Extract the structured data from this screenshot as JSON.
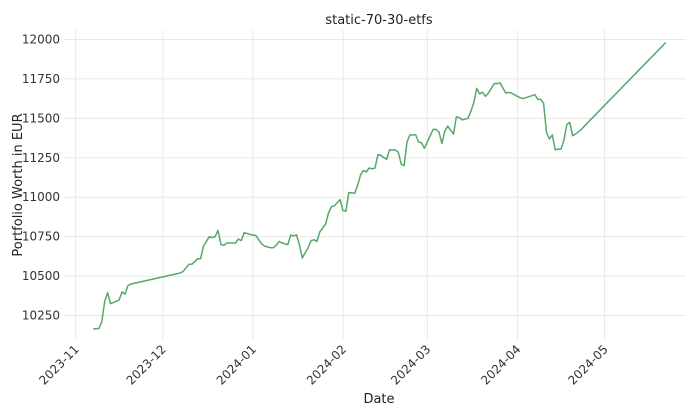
{
  "chart_data": {
    "type": "line",
    "title": "static-70-30-etfs",
    "xlabel": "Date",
    "ylabel": "Portfolio Worth in EUR",
    "x_ticks": [
      "2023-11",
      "2023-12",
      "2024-01",
      "2024-02",
      "2024-03",
      "2024-04",
      "2024-05"
    ],
    "y_ticks": [
      10250,
      10500,
      10750,
      11000,
      11250,
      11500,
      11750,
      12000
    ],
    "xlim": [
      "2023-10-28",
      "2024-05-29"
    ],
    "ylim": [
      10095,
      12060
    ],
    "grid": true,
    "legend": "none",
    "colors": {
      "line": "#55a868",
      "grid": "#e8e8e8"
    },
    "series": [
      {
        "x": [
          "2023-11-07",
          "2023-11-09",
          "2023-11-10",
          "2023-11-11",
          "2023-11-12",
          "2023-11-13",
          "2023-11-15",
          "2023-11-16",
          "2023-11-17",
          "2023-11-18",
          "2023-11-19",
          "2023-11-20",
          "2023-12-07",
          "2023-12-08",
          "2023-12-10",
          "2023-12-11",
          "2023-12-13",
          "2023-12-14",
          "2023-12-15",
          "2023-12-17",
          "2023-12-18",
          "2023-12-19",
          "2023-12-20",
          "2023-12-21",
          "2023-12-22",
          "2023-12-23",
          "2023-12-24",
          "2023-12-26",
          "2023-12-27",
          "2023-12-28",
          "2023-12-29",
          "2024-01-01",
          "2024-01-02",
          "2024-01-04",
          "2024-01-05",
          "2024-01-07",
          "2024-01-08",
          "2024-01-09",
          "2024-01-10",
          "2024-01-11",
          "2024-01-13",
          "2024-01-14",
          "2024-01-15",
          "2024-01-16",
          "2024-01-17",
          "2024-01-18",
          "2024-01-20",
          "2024-01-21",
          "2024-01-22",
          "2024-01-23",
          "2024-01-24",
          "2024-01-26",
          "2024-01-27",
          "2024-01-28",
          "2024-01-29",
          "2024-01-31",
          "2024-02-01",
          "2024-02-02",
          "2024-02-03",
          "2024-02-05",
          "2024-02-06",
          "2024-02-07",
          "2024-02-08",
          "2024-02-09",
          "2024-02-10",
          "2024-02-11",
          "2024-02-12",
          "2024-02-13",
          "2024-02-14",
          "2024-02-16",
          "2024-02-17",
          "2024-02-19",
          "2024-02-20",
          "2024-02-21",
          "2024-02-22",
          "2024-02-23",
          "2024-02-24",
          "2024-02-26",
          "2024-02-27",
          "2024-02-28",
          "2024-02-29",
          "2024-03-01",
          "2024-03-03",
          "2024-03-04",
          "2024-03-05",
          "2024-03-06",
          "2024-03-07",
          "2024-03-08",
          "2024-03-10",
          "2024-03-11",
          "2024-03-12",
          "2024-03-13",
          "2024-03-15",
          "2024-03-16",
          "2024-03-17",
          "2024-03-18",
          "2024-03-19",
          "2024-03-20",
          "2024-03-21",
          "2024-03-22",
          "2024-03-24",
          "2024-03-25",
          "2024-03-26",
          "2024-03-28",
          "2024-03-29",
          "2024-03-30",
          "2024-04-01",
          "2024-04-02",
          "2024-04-03",
          "2024-04-07",
          "2024-04-08",
          "2024-04-09",
          "2024-04-10",
          "2024-04-11",
          "2024-04-12",
          "2024-04-13",
          "2024-04-14",
          "2024-04-15",
          "2024-04-16",
          "2024-04-17",
          "2024-04-18",
          "2024-04-19",
          "2024-04-20",
          "2024-04-21",
          "2024-04-23",
          "2024-04-24",
          "2024-05-22"
        ],
        "y": [
          10165,
          10168,
          10210,
          10340,
          10395,
          10325,
          10340,
          10350,
          10400,
          10385,
          10440,
          10450,
          10520,
          10530,
          10575,
          10575,
          10610,
          10610,
          10690,
          10750,
          10745,
          10750,
          10790,
          10700,
          10695,
          10710,
          10710,
          10710,
          10735,
          10725,
          10775,
          10760,
          10758,
          10705,
          10690,
          10680,
          10680,
          10695,
          10720,
          10710,
          10700,
          10760,
          10755,
          10762,
          10700,
          10615,
          10680,
          10725,
          10730,
          10720,
          10780,
          10830,
          10900,
          10940,
          10945,
          10985,
          10915,
          10912,
          11030,
          11025,
          11075,
          11140,
          11170,
          11160,
          11185,
          11180,
          11185,
          11270,
          11265,
          11240,
          11300,
          11300,
          11285,
          11210,
          11200,
          11350,
          11395,
          11395,
          11350,
          11345,
          11310,
          11350,
          11430,
          11430,
          11415,
          11340,
          11420,
          11450,
          11400,
          11510,
          11505,
          11490,
          11500,
          11545,
          11600,
          11690,
          11655,
          11665,
          11640,
          11660,
          11720,
          11720,
          11725,
          11660,
          11665,
          11660,
          11640,
          11630,
          11625,
          11650,
          11620,
          11620,
          11595,
          11410,
          11370,
          11395,
          11300,
          11305,
          11305,
          11360,
          11460,
          11475,
          11390,
          11400,
          11430,
          11450,
          11980
        ]
      }
    ]
  }
}
